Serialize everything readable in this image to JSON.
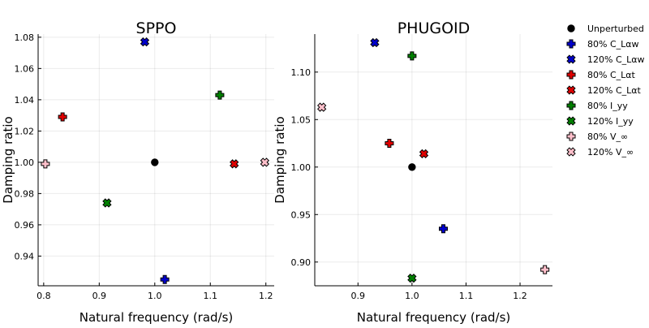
{
  "chart_data": [
    {
      "type": "scatter",
      "title": "SPPO",
      "xlabel": "Natural frequency (rad/s)",
      "ylabel": "Damping ratio",
      "xlim": [
        0.79,
        1.215
      ],
      "ylim": [
        0.921,
        1.082
      ],
      "xticks": [
        0.8,
        0.9,
        1.0,
        1.1,
        1.2
      ],
      "xtick_labels": [
        "0.8",
        "0.9",
        "1.0",
        "1.1",
        "1.2"
      ],
      "yticks": [
        0.94,
        0.96,
        0.98,
        1.0,
        1.02,
        1.04,
        1.06,
        1.08
      ],
      "ytick_labels": [
        "0.94",
        "0.96",
        "0.98",
        "1.00",
        "1.02",
        "1.04",
        "1.06",
        "1.08"
      ],
      "grid": true,
      "points": [
        {
          "series": "Unperturbed",
          "x": 1.0,
          "y": 1.0
        },
        {
          "series": "80% C_Lαw",
          "x": 1.018,
          "y": 0.925
        },
        {
          "series": "120% C_Lαw",
          "x": 0.982,
          "y": 1.077
        },
        {
          "series": "80% C_Lαt",
          "x": 0.834,
          "y": 1.029
        },
        {
          "series": "120% C_Lαt",
          "x": 1.143,
          "y": 0.999
        },
        {
          "series": "80% I_yy",
          "x": 1.117,
          "y": 1.043
        },
        {
          "series": "120% I_yy",
          "x": 0.914,
          "y": 0.974
        },
        {
          "series": "80% V_∞",
          "x": 0.803,
          "y": 0.999
        },
        {
          "series": "120% V_∞",
          "x": 1.198,
          "y": 1.0
        }
      ]
    },
    {
      "type": "scatter",
      "title": "PHUGOID",
      "xlabel": "Natural frequency (rad/s)",
      "ylabel": "Damping ratio",
      "xlim": [
        0.82,
        1.26
      ],
      "ylim": [
        0.875,
        1.14
      ],
      "xticks": [
        0.9,
        1.0,
        1.1,
        1.2
      ],
      "xtick_labels": [
        "0.9",
        "1.0",
        "1.1",
        "1.2"
      ],
      "yticks": [
        0.9,
        0.95,
        1.0,
        1.05,
        1.1
      ],
      "ytick_labels": [
        "0.90",
        "0.95",
        "1.00",
        "1.05",
        "1.10"
      ],
      "grid": true,
      "points": [
        {
          "series": "Unperturbed",
          "x": 1.0,
          "y": 1.0
        },
        {
          "series": "80% C_Lαw",
          "x": 1.058,
          "y": 0.935
        },
        {
          "series": "120% C_Lαw",
          "x": 0.931,
          "y": 1.131
        },
        {
          "series": "80% C_Lαt",
          "x": 0.958,
          "y": 1.025
        },
        {
          "series": "120% C_Lαt",
          "x": 1.022,
          "y": 1.014
        },
        {
          "series": "80% I_yy",
          "x": 1.0,
          "y": 1.117
        },
        {
          "series": "120% I_yy",
          "x": 1.0,
          "y": 0.883
        },
        {
          "series": "80% V_∞",
          "x": 1.246,
          "y": 0.892
        },
        {
          "series": "120% V_∞",
          "x": 0.833,
          "y": 1.063
        }
      ]
    }
  ],
  "legend": {
    "placement": "outside-right",
    "entries": [
      {
        "name": "Unperturbed",
        "color": "#000000",
        "marker": "circle"
      },
      {
        "name": "80% C_Lαw",
        "color": "#0000cc",
        "marker": "cross"
      },
      {
        "name": "120% C_Lαw",
        "color": "#0000cc",
        "marker": "xcross"
      },
      {
        "name": "80% C_Lαt",
        "color": "#e00000",
        "marker": "cross"
      },
      {
        "name": "120% C_Lαt",
        "color": "#e00000",
        "marker": "xcross"
      },
      {
        "name": "80% I_yy",
        "color": "#008000",
        "marker": "cross"
      },
      {
        "name": "120% I_yy",
        "color": "#008000",
        "marker": "xcross"
      },
      {
        "name": "80% V_∞",
        "color": "#ffc0cb",
        "marker": "cross"
      },
      {
        "name": "120% V_∞",
        "color": "#ffc0cb",
        "marker": "xcross"
      }
    ]
  }
}
